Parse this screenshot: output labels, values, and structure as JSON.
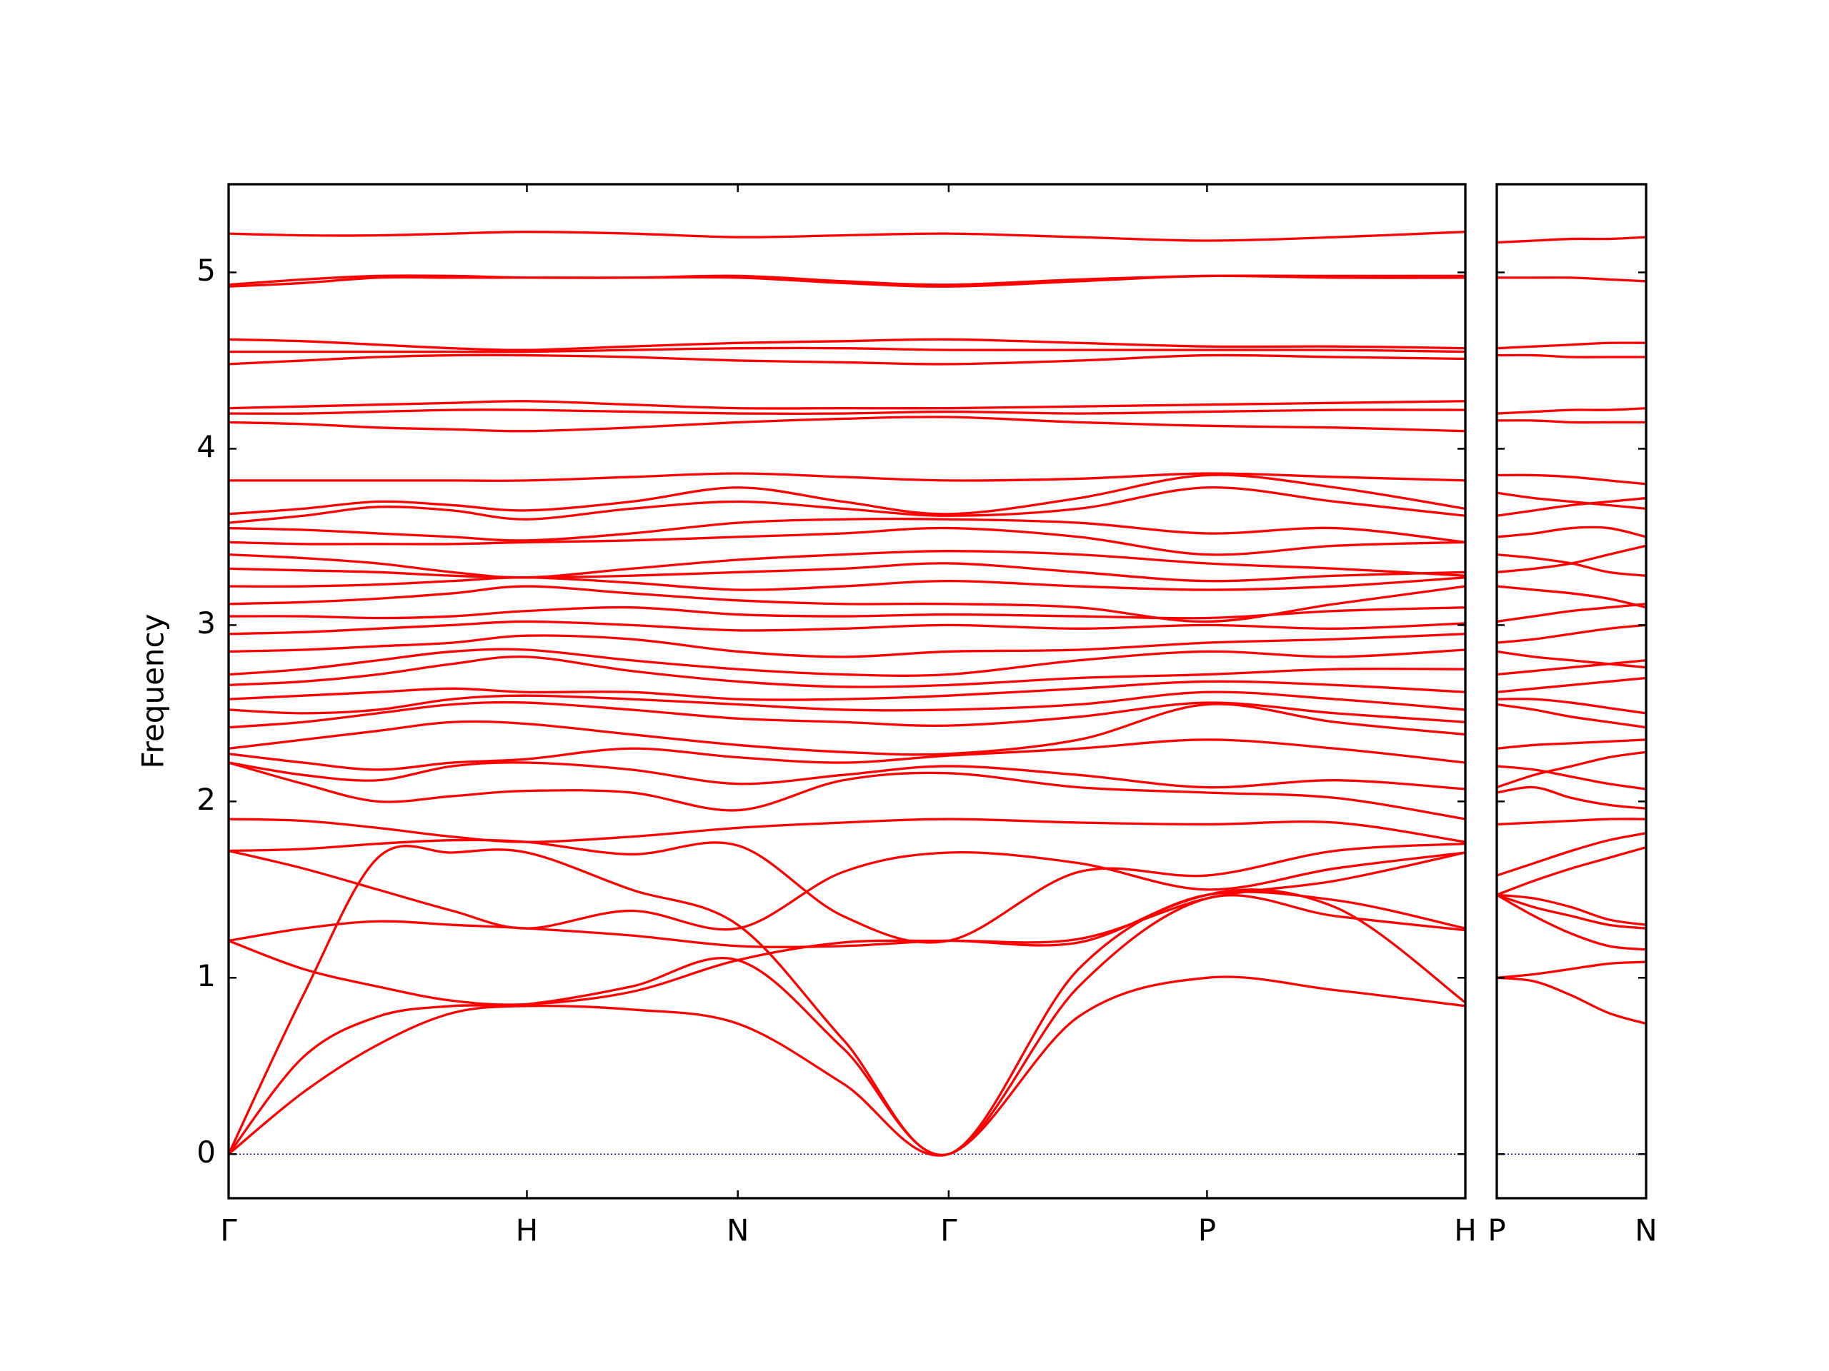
{
  "chart_data": [
    {
      "type": "line",
      "ylabel": "Frequency",
      "color": "#ff0000",
      "zero_line": 0,
      "zero_line_color": "#0000cc",
      "xlim": [
        0,
        4.1463
      ],
      "ylim": [
        -0.25,
        5.5
      ],
      "yticks": [
        0,
        1,
        2,
        3,
        4,
        5
      ],
      "show_ytick_labels": true,
      "xticks": [
        {
          "value": 0,
          "label": "Γ"
        },
        {
          "value": 1,
          "label": "H"
        },
        {
          "value": 1.7071,
          "label": "N"
        },
        {
          "value": 2.4142,
          "label": "Γ"
        },
        {
          "value": 3.2802,
          "label": "P"
        },
        {
          "value": 4.1463,
          "label": "H"
        }
      ],
      "x": [
        0,
        0.25,
        0.5,
        0.75,
        1,
        1.35,
        1.7071,
        2.06,
        2.4142,
        2.85,
        3.2802,
        3.71,
        4.1463
      ],
      "series": [
        {
          "values": [
            0,
            0.35,
            0.62,
            0.8,
            0.84,
            0.82,
            0.74,
            0.4,
            0,
            0.78,
            1.0,
            0.93,
            0.84
          ]
        },
        {
          "values": [
            0,
            0.55,
            0.78,
            0.84,
            0.85,
            0.95,
            1.1,
            0.6,
            0,
            0.95,
            1.45,
            1.35,
            1.27
          ]
        },
        {
          "values": [
            0,
            0.9,
            1.68,
            1.71,
            1.71,
            1.5,
            1.3,
            0.65,
            0,
            1.05,
            1.47,
            1.4,
            0.86
          ]
        },
        {
          "values": [
            1.21,
            1.05,
            0.95,
            0.87,
            0.85,
            0.92,
            1.1,
            1.2,
            1.21,
            1.22,
            1.45,
            1.55,
            1.71
          ]
        },
        {
          "values": [
            1.21,
            1.28,
            1.32,
            1.3,
            1.28,
            1.24,
            1.18,
            1.18,
            1.21,
            1.2,
            1.47,
            1.44,
            1.28
          ]
        },
        {
          "values": [
            1.72,
            1.62,
            1.5,
            1.38,
            1.28,
            1.38,
            1.28,
            1.6,
            1.71,
            1.65,
            1.5,
            1.62,
            1.71
          ]
        },
        {
          "values": [
            1.72,
            1.73,
            1.76,
            1.78,
            1.77,
            1.7,
            1.75,
            1.35,
            1.21,
            1.6,
            1.58,
            1.72,
            1.76
          ]
        },
        {
          "values": [
            1.9,
            1.89,
            1.85,
            1.8,
            1.77,
            1.8,
            1.85,
            1.88,
            1.9,
            1.88,
            1.87,
            1.88,
            1.77
          ]
        },
        {
          "values": [
            2.22,
            2.1,
            2.0,
            2.03,
            2.06,
            2.05,
            1.95,
            2.12,
            2.16,
            2.08,
            2.05,
            2.02,
            1.9
          ]
        },
        {
          "values": [
            2.22,
            2.15,
            2.12,
            2.2,
            2.22,
            2.18,
            2.1,
            2.15,
            2.2,
            2.15,
            2.08,
            2.12,
            2.07
          ]
        },
        {
          "values": [
            2.27,
            2.22,
            2.18,
            2.22,
            2.24,
            2.3,
            2.25,
            2.22,
            2.26,
            2.3,
            2.35,
            2.3,
            2.22
          ]
        },
        {
          "values": [
            2.3,
            2.35,
            2.4,
            2.45,
            2.44,
            2.38,
            2.32,
            2.28,
            2.27,
            2.35,
            2.55,
            2.45,
            2.38
          ]
        },
        {
          "values": [
            2.42,
            2.45,
            2.5,
            2.55,
            2.56,
            2.52,
            2.47,
            2.45,
            2.43,
            2.48,
            2.56,
            2.5,
            2.45
          ]
        },
        {
          "values": [
            2.52,
            2.5,
            2.52,
            2.58,
            2.6,
            2.58,
            2.55,
            2.52,
            2.52,
            2.55,
            2.62,
            2.58,
            2.52
          ]
        },
        {
          "values": [
            2.58,
            2.6,
            2.62,
            2.64,
            2.62,
            2.62,
            2.58,
            2.58,
            2.6,
            2.64,
            2.68,
            2.66,
            2.62
          ]
        },
        {
          "values": [
            2.66,
            2.68,
            2.72,
            2.78,
            2.82,
            2.74,
            2.68,
            2.65,
            2.66,
            2.7,
            2.72,
            2.75,
            2.75
          ]
        },
        {
          "values": [
            2.72,
            2.75,
            2.8,
            2.85,
            2.86,
            2.8,
            2.75,
            2.72,
            2.72,
            2.8,
            2.85,
            2.82,
            2.86
          ]
        },
        {
          "values": [
            2.85,
            2.86,
            2.88,
            2.9,
            2.94,
            2.92,
            2.85,
            2.82,
            2.85,
            2.86,
            2.9,
            2.92,
            2.95
          ]
        },
        {
          "values": [
            2.95,
            2.96,
            2.98,
            3.0,
            3.02,
            3.0,
            2.97,
            2.98,
            3.0,
            2.98,
            3.0,
            2.98,
            3.01
          ]
        },
        {
          "values": [
            3.05,
            3.05,
            3.04,
            3.05,
            3.08,
            3.1,
            3.06,
            3.05,
            3.06,
            3.05,
            3.04,
            3.08,
            3.1
          ]
        },
        {
          "values": [
            3.12,
            3.13,
            3.15,
            3.18,
            3.22,
            3.18,
            3.14,
            3.12,
            3.12,
            3.1,
            3.02,
            3.12,
            3.22
          ]
        },
        {
          "values": [
            3.22,
            3.22,
            3.23,
            3.25,
            3.27,
            3.24,
            3.2,
            3.22,
            3.25,
            3.22,
            3.2,
            3.22,
            3.27
          ]
        },
        {
          "values": [
            3.32,
            3.31,
            3.3,
            3.28,
            3.27,
            3.28,
            3.3,
            3.32,
            3.35,
            3.3,
            3.25,
            3.28,
            3.3
          ]
        },
        {
          "values": [
            3.4,
            3.38,
            3.35,
            3.3,
            3.27,
            3.32,
            3.37,
            3.4,
            3.42,
            3.4,
            3.35,
            3.32,
            3.28
          ]
        },
        {
          "values": [
            3.47,
            3.46,
            3.46,
            3.46,
            3.47,
            3.48,
            3.5,
            3.52,
            3.55,
            3.5,
            3.4,
            3.45,
            3.47
          ]
        },
        {
          "values": [
            3.55,
            3.54,
            3.52,
            3.5,
            3.48,
            3.52,
            3.58,
            3.6,
            3.6,
            3.58,
            3.52,
            3.55,
            3.47
          ]
        },
        {
          "values": [
            3.58,
            3.62,
            3.67,
            3.65,
            3.6,
            3.66,
            3.7,
            3.66,
            3.62,
            3.66,
            3.78,
            3.7,
            3.62
          ]
        },
        {
          "values": [
            3.63,
            3.66,
            3.7,
            3.68,
            3.65,
            3.7,
            3.78,
            3.7,
            3.63,
            3.72,
            3.85,
            3.78,
            3.66
          ]
        },
        {
          "values": [
            3.82,
            3.82,
            3.82,
            3.82,
            3.82,
            3.84,
            3.86,
            3.84,
            3.82,
            3.83,
            3.86,
            3.84,
            3.82
          ]
        },
        {
          "values": [
            4.15,
            4.14,
            4.12,
            4.11,
            4.1,
            4.12,
            4.15,
            4.17,
            4.18,
            4.15,
            4.13,
            4.12,
            4.1
          ]
        },
        {
          "values": [
            4.2,
            4.2,
            4.21,
            4.22,
            4.22,
            4.21,
            4.2,
            4.2,
            4.21,
            4.2,
            4.21,
            4.22,
            4.22
          ]
        },
        {
          "values": [
            4.23,
            4.24,
            4.25,
            4.26,
            4.27,
            4.25,
            4.23,
            4.23,
            4.23,
            4.24,
            4.25,
            4.26,
            4.27
          ]
        },
        {
          "values": [
            4.48,
            4.5,
            4.52,
            4.53,
            4.53,
            4.52,
            4.5,
            4.49,
            4.48,
            4.5,
            4.53,
            4.52,
            4.51
          ]
        },
        {
          "values": [
            4.55,
            4.55,
            4.55,
            4.55,
            4.55,
            4.56,
            4.57,
            4.57,
            4.56,
            4.56,
            4.56,
            4.56,
            4.55
          ]
        },
        {
          "values": [
            4.62,
            4.61,
            4.59,
            4.57,
            4.56,
            4.58,
            4.6,
            4.61,
            4.62,
            4.6,
            4.58,
            4.58,
            4.57
          ]
        },
        {
          "values": [
            4.92,
            4.94,
            4.97,
            4.97,
            4.97,
            4.97,
            4.97,
            4.94,
            4.92,
            4.95,
            4.98,
            4.97,
            4.97
          ]
        },
        {
          "values": [
            4.93,
            4.96,
            4.98,
            4.98,
            4.97,
            4.97,
            4.98,
            4.95,
            4.93,
            4.96,
            4.98,
            4.98,
            4.98
          ]
        },
        {
          "values": [
            5.22,
            5.21,
            5.21,
            5.22,
            5.23,
            5.22,
            5.2,
            5.21,
            5.22,
            5.2,
            5.18,
            5.2,
            5.23
          ]
        }
      ]
    },
    {
      "type": "line",
      "color": "#ff0000",
      "zero_line": 0,
      "zero_line_color": "#0000cc",
      "xlim": [
        0,
        0.5
      ],
      "ylim": [
        -0.25,
        5.5
      ],
      "yticks": [
        0,
        1,
        2,
        3,
        4,
        5
      ],
      "show_ytick_labels": false,
      "xticks": [
        {
          "value": 0,
          "label": "P"
        },
        {
          "value": 0.5,
          "label": "N"
        }
      ],
      "x": [
        0,
        0.125,
        0.25,
        0.375,
        0.5
      ],
      "series": [
        {
          "values": [
            1.0,
            0.98,
            0.9,
            0.8,
            0.74
          ]
        },
        {
          "values": [
            1.0,
            1.02,
            1.05,
            1.08,
            1.09
          ]
        },
        {
          "values": [
            1.47,
            1.35,
            1.25,
            1.18,
            1.16
          ]
        },
        {
          "values": [
            1.47,
            1.4,
            1.35,
            1.3,
            1.28
          ]
        },
        {
          "values": [
            1.47,
            1.45,
            1.4,
            1.33,
            1.3
          ]
        },
        {
          "values": [
            1.47,
            1.55,
            1.62,
            1.68,
            1.74
          ]
        },
        {
          "values": [
            1.58,
            1.65,
            1.72,
            1.78,
            1.82
          ]
        },
        {
          "values": [
            1.87,
            1.88,
            1.89,
            1.9,
            1.9
          ]
        },
        {
          "values": [
            2.05,
            2.08,
            2.02,
            1.98,
            1.96
          ]
        },
        {
          "values": [
            2.08,
            2.15,
            2.2,
            2.25,
            2.28
          ]
        },
        {
          "values": [
            2.2,
            2.18,
            2.14,
            2.1,
            2.07
          ]
        },
        {
          "values": [
            2.3,
            2.32,
            2.33,
            2.34,
            2.35
          ]
        },
        {
          "values": [
            2.55,
            2.52,
            2.48,
            2.45,
            2.42
          ]
        },
        {
          "values": [
            2.58,
            2.58,
            2.56,
            2.53,
            2.5
          ]
        },
        {
          "values": [
            2.62,
            2.64,
            2.66,
            2.68,
            2.7
          ]
        },
        {
          "values": [
            2.72,
            2.74,
            2.76,
            2.78,
            2.8
          ]
        },
        {
          "values": [
            2.85,
            2.82,
            2.8,
            2.78,
            2.76
          ]
        },
        {
          "values": [
            2.9,
            2.92,
            2.95,
            2.98,
            3.0
          ]
        },
        {
          "values": [
            3.02,
            3.05,
            3.08,
            3.1,
            3.12
          ]
        },
        {
          "values": [
            3.22,
            3.2,
            3.18,
            3.15,
            3.1
          ]
        },
        {
          "values": [
            3.3,
            3.32,
            3.35,
            3.4,
            3.45
          ]
        },
        {
          "values": [
            3.4,
            3.38,
            3.35,
            3.3,
            3.28
          ]
        },
        {
          "values": [
            3.5,
            3.52,
            3.55,
            3.55,
            3.5
          ]
        },
        {
          "values": [
            3.62,
            3.65,
            3.68,
            3.7,
            3.72
          ]
        },
        {
          "values": [
            3.75,
            3.72,
            3.7,
            3.68,
            3.66
          ]
        },
        {
          "values": [
            3.85,
            3.85,
            3.84,
            3.82,
            3.8
          ]
        },
        {
          "values": [
            4.16,
            4.16,
            4.15,
            4.15,
            4.15
          ]
        },
        {
          "values": [
            4.2,
            4.21,
            4.22,
            4.22,
            4.23
          ]
        },
        {
          "values": [
            4.53,
            4.53,
            4.52,
            4.52,
            4.52
          ]
        },
        {
          "values": [
            4.57,
            4.58,
            4.59,
            4.6,
            4.6
          ]
        },
        {
          "values": [
            4.97,
            4.97,
            4.97,
            4.96,
            4.95
          ]
        },
        {
          "values": [
            5.17,
            5.18,
            5.19,
            5.19,
            5.2
          ]
        }
      ]
    }
  ]
}
